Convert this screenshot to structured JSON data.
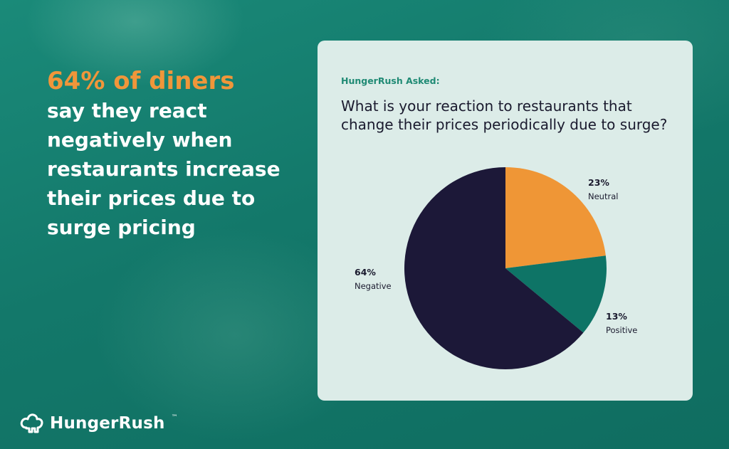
{
  "headline": {
    "accent": "64% of diners",
    "rest": "say they react negatively when restaurants increase their prices due to surge pricing"
  },
  "logo": {
    "brand": "HungerRush",
    "tm": "™"
  },
  "card": {
    "asked": "HungerRush Asked:",
    "question": "What is your reaction to restaurants that change their prices periodically due to surge?"
  },
  "colors": {
    "neutral": "#ef9636",
    "positive": "#0e7466",
    "negative": "#1c1838"
  },
  "chart_data": {
    "type": "pie",
    "title": "What is your reaction to restaurants that change their prices periodically due to surge?",
    "slices": [
      {
        "label": "Neutral",
        "value": 23,
        "display": "23%",
        "color": "#ef9636"
      },
      {
        "label": "Positive",
        "value": 13,
        "display": "13%",
        "color": "#0e7466"
      },
      {
        "label": "Negative",
        "value": 64,
        "display": "64%",
        "color": "#1c1838"
      }
    ]
  }
}
